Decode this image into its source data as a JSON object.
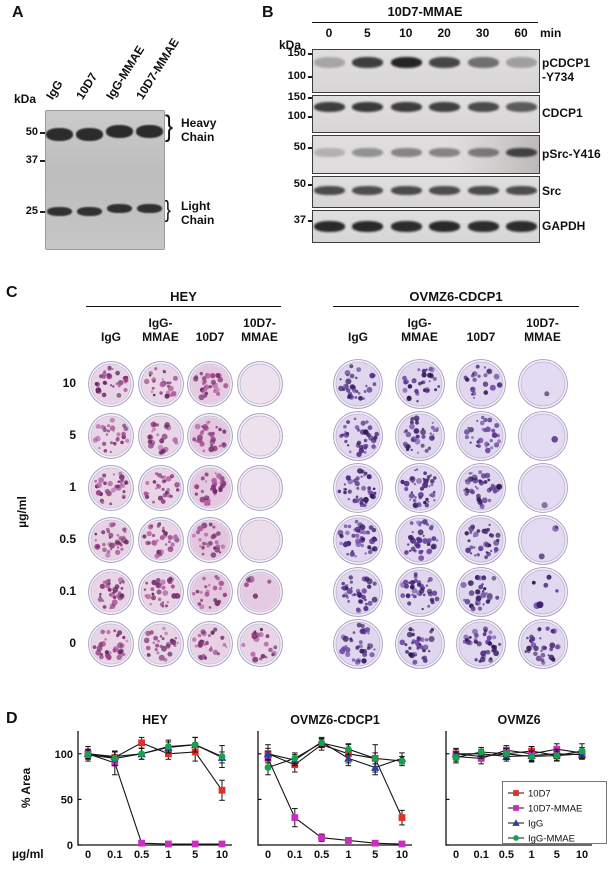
{
  "panelA": {
    "label": "A",
    "kda": "kDa",
    "lane_labels": [
      "IgG",
      "10D7",
      "IgG-MMAE",
      "10D7-MMAE"
    ],
    "markers": [
      "50",
      "37",
      "25"
    ],
    "annotations": [
      "Heavy\nChain",
      "Light\nChain"
    ],
    "brace": "}"
  },
  "panelB": {
    "label": "B",
    "title": "10D7-MMAE",
    "kda": "kDa",
    "timepoints": [
      "0",
      "5",
      "10",
      "20",
      "30",
      "60"
    ],
    "time_unit": "min",
    "blots": [
      {
        "name": "pCDCP1\n-Y734",
        "markers": [
          "150",
          "100"
        ],
        "band_intensity": [
          0.18,
          0.8,
          0.95,
          0.75,
          0.5,
          0.22
        ]
      },
      {
        "name": "CDCP1",
        "markers": [
          "150",
          "100"
        ],
        "band_intensity": [
          0.8,
          0.82,
          0.8,
          0.78,
          0.72,
          0.62
        ]
      },
      {
        "name": "pSrc-Y416",
        "markers": [
          "50"
        ],
        "band_intensity": [
          0.12,
          0.3,
          0.38,
          0.38,
          0.42,
          0.75
        ]
      },
      {
        "name": "Src",
        "markers": [
          "50"
        ],
        "band_intensity": [
          0.72,
          0.7,
          0.72,
          0.7,
          0.72,
          0.7
        ]
      },
      {
        "name": "GAPDH",
        "markers": [
          "37"
        ],
        "band_intensity": [
          0.92,
          0.92,
          0.9,
          0.92,
          0.9,
          0.9
        ]
      }
    ]
  },
  "panelC": {
    "label": "C",
    "y_axis_label": "µg/ml",
    "row_labels": [
      "10",
      "5",
      "1",
      "0.5",
      "0.1",
      "0"
    ],
    "column_labels": [
      "IgG",
      "IgG-\nMMAE",
      "10D7",
      "10D7-\nMMAE"
    ],
    "groups": [
      {
        "name": "HEY",
        "wells": [
          {
            "column": "IgG",
            "density": [
              0.5,
              0.45,
              0.5,
              0.55,
              0.55,
              0.5
            ],
            "wash": [
              0.3,
              0.25,
              0.3,
              0.35,
              0.3,
              0.3
            ]
          },
          {
            "column": "IgG-MMAE",
            "density": [
              0.4,
              0.4,
              0.45,
              0.5,
              0.5,
              0.45
            ],
            "wash": [
              0.25,
              0.25,
              0.3,
              0.3,
              0.3,
              0.25
            ]
          },
          {
            "column": "10D7",
            "density": [
              0.45,
              0.5,
              0.5,
              0.45,
              0.35,
              0.45
            ],
            "wash": [
              0.55,
              0.6,
              0.6,
              0.65,
              0.6,
              0.35
            ]
          },
          {
            "column": "10D7-MMAE",
            "density": [
              0,
              0,
              0,
              0,
              0.08,
              0.35
            ],
            "wash": [
              0,
              0,
              0,
              0.05,
              0.5,
              0.3
            ]
          }
        ]
      },
      {
        "name": "OVMZ6-CDCP1",
        "wells": [
          {
            "column": "IgG",
            "density": [
              0.55,
              0.6,
              0.7,
              0.7,
              0.6,
              0.6
            ],
            "wash": [
              0.12,
              0.12,
              0.15,
              0.15,
              0.12,
              0.12
            ]
          },
          {
            "column": "IgG-MMAE",
            "density": [
              0.5,
              0.6,
              0.7,
              0.65,
              0.6,
              0.6
            ],
            "wash": [
              0.12,
              0.12,
              0.15,
              0.15,
              0.12,
              0.12
            ]
          },
          {
            "column": "10D7",
            "density": [
              0.35,
              0.5,
              0.65,
              0.6,
              0.55,
              0.6
            ],
            "wash": [
              0.08,
              0.1,
              0.12,
              0.12,
              0.1,
              0.1
            ]
          },
          {
            "column": "10D7-MMAE",
            "density": [
              0.02,
              0.01,
              0.02,
              0.05,
              0.12,
              0.55
            ],
            "wash": [
              0,
              0,
              0,
              0,
              0.05,
              0.1
            ]
          }
        ]
      }
    ]
  },
  "panelD": {
    "label": "D",
    "legend": [
      {
        "label": "10D7",
        "color": "#e03127",
        "marker": "square"
      },
      {
        "label": "10D7-MMAE",
        "color": "#cb2dc0",
        "marker": "square"
      },
      {
        "label": "IgG",
        "color": "#2a3f9f",
        "marker": "triangle"
      },
      {
        "label": "IgG-MMAE",
        "color": "#14a24c",
        "marker": "circle"
      }
    ]
  },
  "chart_data": [
    {
      "type": "line",
      "title": "HEY",
      "x_categories": [
        "0",
        "0.1",
        "0.5",
        "1",
        "5",
        "10"
      ],
      "xlabel": "µg/ml",
      "ylabel": "% Area",
      "ylim": [
        0,
        125
      ],
      "yticks": [
        0,
        50,
        100
      ],
      "series": [
        {
          "name": "10D7",
          "color": "#e03127",
          "marker": "square",
          "values": [
            100,
            96,
            112,
            100,
            102,
            60
          ],
          "errors": [
            8,
            6,
            6,
            6,
            10,
            11
          ]
        },
        {
          "name": "10D7-MMAE",
          "color": "#cb2dc0",
          "marker": "square",
          "values": [
            100,
            90,
            2,
            1,
            1,
            1
          ],
          "errors": [
            5,
            13,
            2,
            1,
            1,
            1
          ]
        },
        {
          "name": "IgG",
          "color": "#2a3f9f",
          "marker": "triangle",
          "values": [
            100,
            97,
            100,
            107,
            110,
            96
          ],
          "errors": [
            5,
            5,
            6,
            6,
            8,
            6
          ]
        },
        {
          "name": "IgG-MMAE",
          "color": "#14a24c",
          "marker": "circle",
          "values": [
            99,
            95,
            100,
            108,
            110,
            97
          ],
          "errors": [
            5,
            8,
            6,
            7,
            8,
            12
          ]
        }
      ]
    },
    {
      "type": "line",
      "title": "OVMZ6-CDCP1",
      "x_categories": [
        "0",
        "0.1",
        "0.5",
        "1",
        "5",
        "10"
      ],
      "ylim": [
        0,
        125
      ],
      "yticks": [
        0,
        50,
        100
      ],
      "series": [
        {
          "name": "10D7",
          "color": "#e03127",
          "marker": "square",
          "values": [
            100,
            88,
            110,
            100,
            95,
            30
          ],
          "errors": [
            10,
            8,
            6,
            10,
            15,
            8
          ]
        },
        {
          "name": "10D7-MMAE",
          "color": "#cb2dc0",
          "marker": "square",
          "values": [
            95,
            30,
            8,
            5,
            2,
            1
          ],
          "errors": [
            8,
            10,
            4,
            3,
            2,
            1
          ]
        },
        {
          "name": "IgG",
          "color": "#2a3f9f",
          "marker": "triangle",
          "values": [
            100,
            93,
            113,
            95,
            85,
            95
          ],
          "errors": [
            6,
            6,
            5,
            8,
            8,
            6
          ]
        },
        {
          "name": "IgG-MMAE",
          "color": "#14a24c",
          "marker": "circle",
          "values": [
            85,
            95,
            112,
            105,
            95,
            92
          ],
          "errors": [
            8,
            6,
            5,
            6,
            6,
            5
          ]
        }
      ]
    },
    {
      "type": "line",
      "title": "OVMZ6",
      "x_categories": [
        "0",
        "0.1",
        "0.5",
        "1",
        "5",
        "10"
      ],
      "ylim": [
        0,
        125
      ],
      "yticks": [
        0,
        50,
        100
      ],
      "series": [
        {
          "name": "10D7",
          "color": "#e03127",
          "marker": "square",
          "values": [
            100,
            97,
            100,
            103,
            98,
            100
          ],
          "errors": [
            6,
            5,
            6,
            5,
            6,
            5
          ]
        },
        {
          "name": "10D7-MMAE",
          "color": "#cb2dc0",
          "marker": "square",
          "values": [
            97,
            95,
            104,
            100,
            105,
            101
          ],
          "errors": [
            5,
            6,
            5,
            8,
            6,
            6
          ]
        },
        {
          "name": "IgG",
          "color": "#2a3f9f",
          "marker": "triangle",
          "values": [
            100,
            100,
            97,
            98,
            100,
            99
          ],
          "errors": [
            5,
            5,
            5,
            5,
            5,
            5
          ]
        },
        {
          "name": "IgG-MMAE",
          "color": "#14a24c",
          "marker": "circle",
          "values": [
            96,
            102,
            100,
            97,
            98,
            103
          ],
          "errors": [
            6,
            5,
            6,
            6,
            5,
            8
          ]
        }
      ]
    }
  ]
}
